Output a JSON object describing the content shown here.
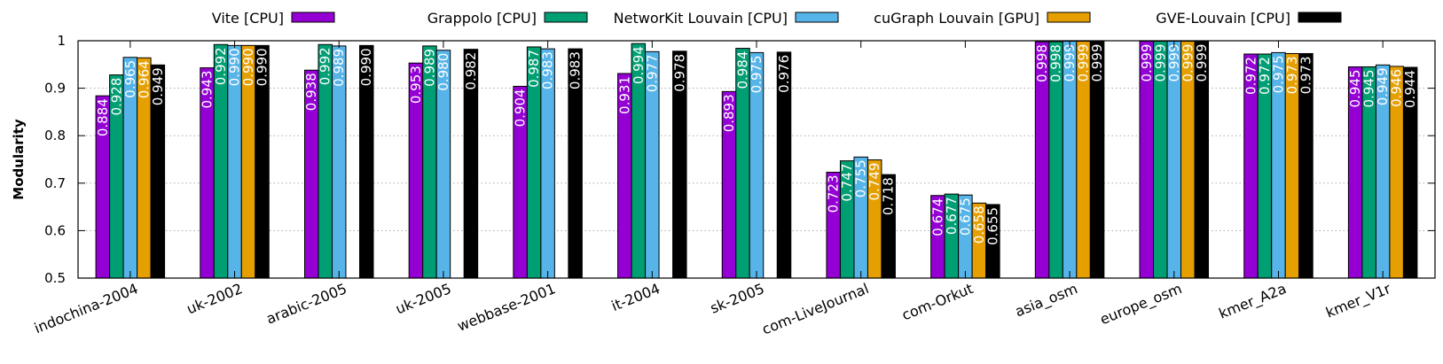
{
  "chart_data": {
    "type": "bar",
    "title": "",
    "xlabel": "",
    "ylabel": "Modularity",
    "ylim": [
      0.5,
      1.0
    ],
    "yticks": [
      "0.5",
      "0.6",
      "0.7",
      "0.8",
      "0.9",
      "1"
    ],
    "grid": "horizontal dotted",
    "legend_position": "top",
    "categories": [
      "indochina-2004",
      "uk-2002",
      "arabic-2005",
      "uk-2005",
      "webbase-2001",
      "it-2004",
      "sk-2005",
      "com-LiveJournal",
      "com-Orkut",
      "asia_osm",
      "europe_osm",
      "kmer_A2a",
      "kmer_V1r"
    ],
    "series": [
      {
        "name": "Vite [CPU]",
        "color": "#9400D3",
        "values": [
          0.884,
          0.943,
          0.938,
          0.953,
          0.904,
          0.931,
          0.893,
          0.723,
          0.674,
          0.998,
          0.999,
          0.972,
          0.945
        ],
        "labels": [
          "0.884",
          "0.943",
          "0.938",
          "0.953",
          "0.904",
          "0.931",
          "0.893",
          "0.723",
          "0.674",
          "0.998",
          "0.999",
          "0.972",
          "0.945"
        ]
      },
      {
        "name": "Grappolo [CPU]",
        "color": "#009E73",
        "values": [
          0.928,
          0.992,
          0.992,
          0.989,
          0.987,
          0.994,
          0.984,
          0.747,
          0.677,
          0.998,
          0.999,
          0.972,
          0.945
        ],
        "labels": [
          "0.928",
          "0.992",
          "0.992",
          "0.989",
          "0.987",
          "0.994",
          "0.984",
          "0.747",
          "0.677",
          "0.998",
          "0.999",
          "0.972",
          "0.945"
        ]
      },
      {
        "name": "NetworKit Louvain [CPU]",
        "color": "#56B4E9",
        "values": [
          0.965,
          0.99,
          0.989,
          0.98,
          0.983,
          0.977,
          0.975,
          0.755,
          0.675,
          0.999,
          0.999,
          0.975,
          0.949
        ],
        "labels": [
          "0.965",
          "0.990",
          "0.989",
          "0.980",
          "0.983",
          "0.977",
          "0.975",
          "0.755",
          "0.675",
          "0.999",
          "0.999",
          "0.975",
          "0.949"
        ]
      },
      {
        "name": "cuGraph Louvain [GPU]",
        "color": "#E69F00",
        "values": [
          0.964,
          0.99,
          null,
          null,
          null,
          null,
          null,
          0.749,
          0.658,
          0.999,
          0.999,
          0.973,
          0.946
        ],
        "labels": [
          "0.964",
          "0.990",
          "",
          "",
          "",
          "",
          "",
          "0.749",
          "0.658",
          "0.999",
          "0.999",
          "0.973",
          "0.946"
        ]
      },
      {
        "name": "GVE-Louvain [CPU]",
        "color": "#000000",
        "values": [
          0.949,
          0.99,
          0.99,
          0.982,
          0.983,
          0.978,
          0.976,
          0.718,
          0.655,
          0.999,
          0.999,
          0.973,
          0.944
        ],
        "labels": [
          "0.949",
          "0.990",
          "0.990",
          "0.982",
          "0.983",
          "0.978",
          "0.976",
          "0.718",
          "0.655",
          "0.999",
          "0.999",
          "0.973",
          "0.944"
        ]
      }
    ]
  }
}
